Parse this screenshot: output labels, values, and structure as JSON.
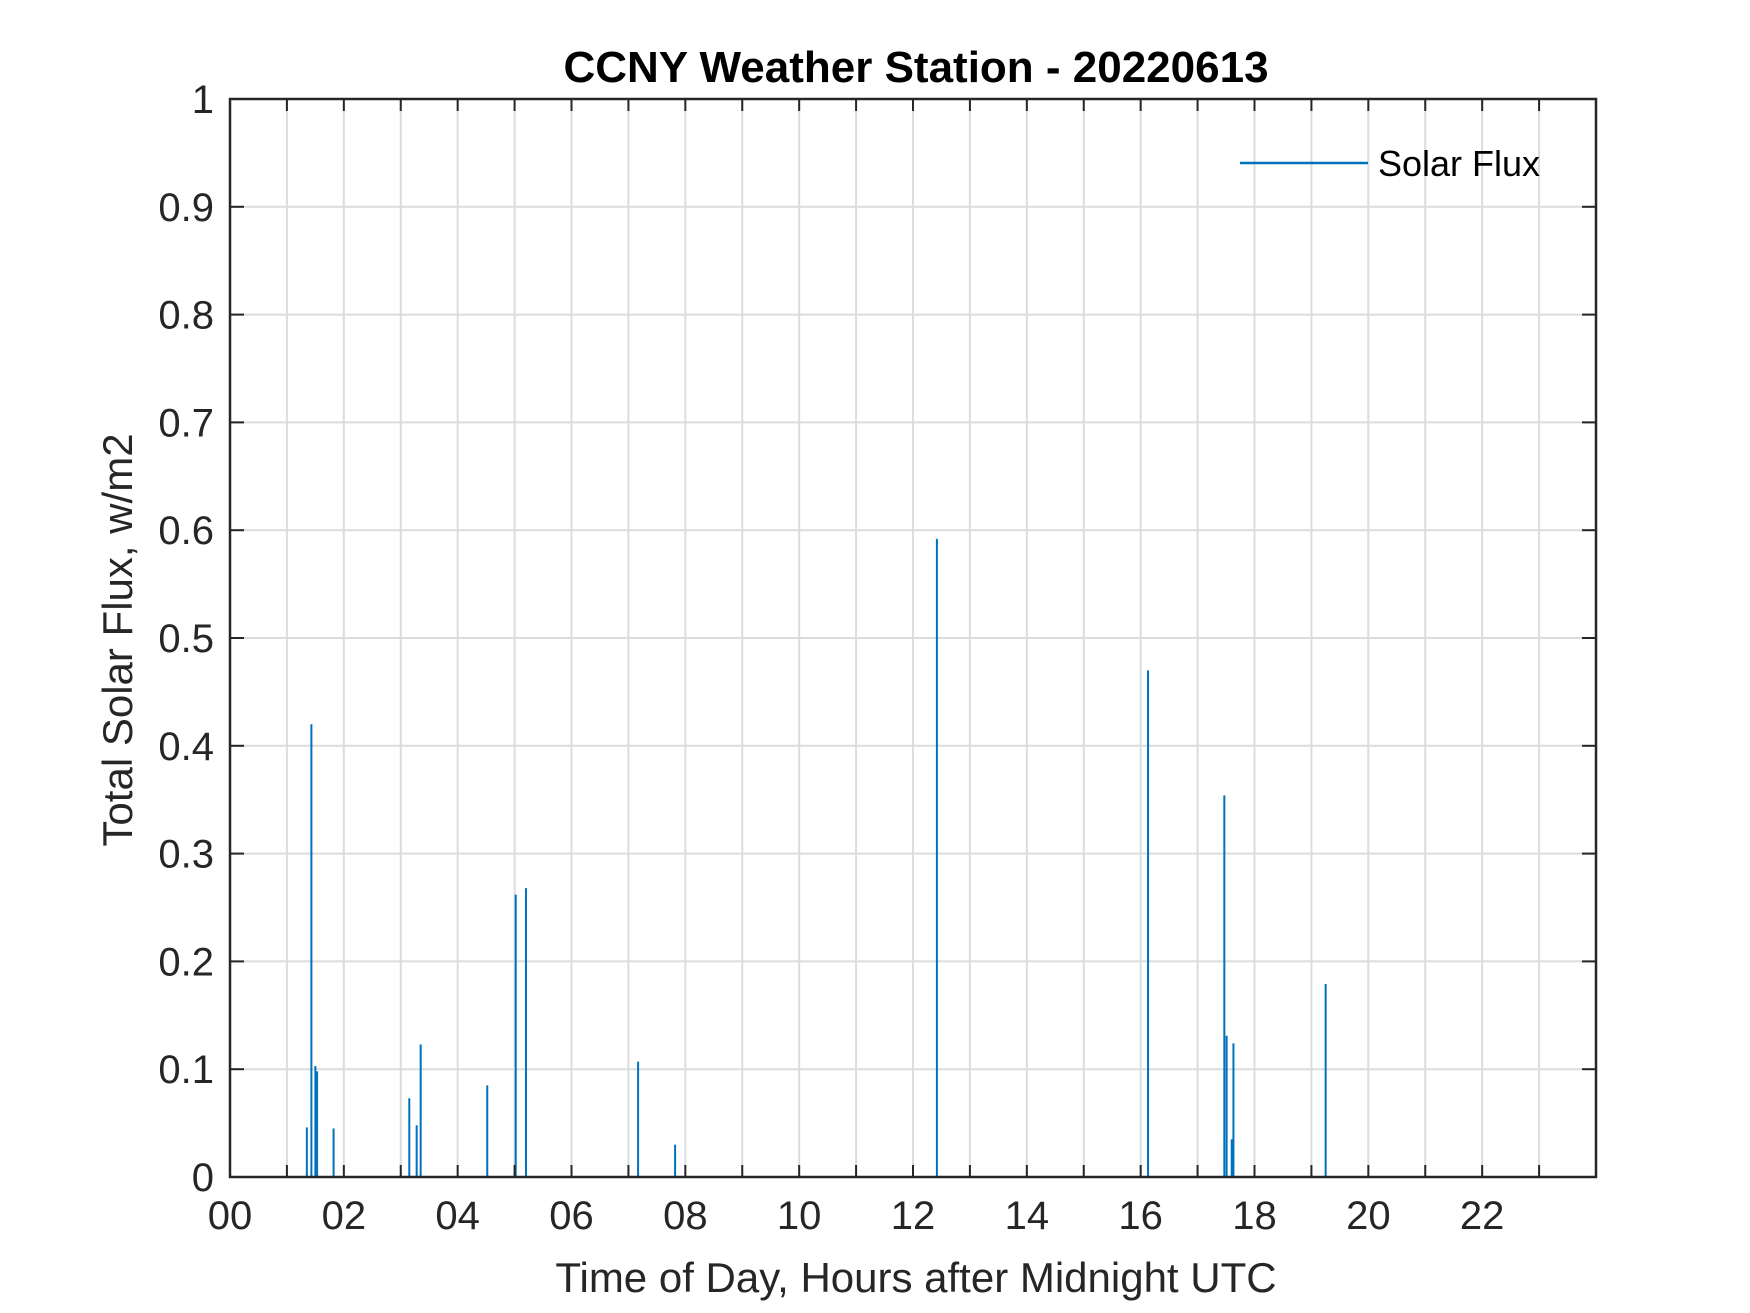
{
  "chart_data": {
    "type": "line",
    "title": "CCNY Weather Station - 20220613",
    "xlabel": "Time of Day, Hours after Midnight UTC",
    "ylabel": "Total Solar Flux, w/m2",
    "xlim": [
      0,
      24
    ],
    "ylim": [
      0,
      1
    ],
    "grid": true,
    "legend_position": "top-right",
    "x_ticks": [
      0,
      2,
      4,
      6,
      8,
      10,
      12,
      14,
      16,
      18,
      20,
      22
    ],
    "x_tick_labels": [
      "00",
      "02",
      "04",
      "06",
      "08",
      "10",
      "12",
      "14",
      "16",
      "18",
      "20",
      "22"
    ],
    "y_ticks": [
      0,
      0.1,
      0.2,
      0.3,
      0.4,
      0.5,
      0.6,
      0.7,
      0.8,
      0.9,
      1
    ],
    "y_tick_labels": [
      "0",
      "0.1",
      "0.2",
      "0.3",
      "0.4",
      "0.5",
      "0.6",
      "0.7",
      "0.8",
      "0.9",
      "1"
    ],
    "series": [
      {
        "name": "Solar Flux",
        "color": "#0072BD",
        "spikes": [
          {
            "x": 1.35,
            "y": 0.046
          },
          {
            "x": 1.43,
            "y": 0.42
          },
          {
            "x": 1.5,
            "y": 0.103
          },
          {
            "x": 1.53,
            "y": 0.098
          },
          {
            "x": 1.82,
            "y": 0.045
          },
          {
            "x": 3.15,
            "y": 0.073
          },
          {
            "x": 3.28,
            "y": 0.048
          },
          {
            "x": 3.35,
            "y": 0.123
          },
          {
            "x": 4.52,
            "y": 0.085
          },
          {
            "x": 5.02,
            "y": 0.262
          },
          {
            "x": 5.2,
            "y": 0.268
          },
          {
            "x": 7.17,
            "y": 0.107
          },
          {
            "x": 7.82,
            "y": 0.03
          },
          {
            "x": 12.42,
            "y": 0.592
          },
          {
            "x": 16.13,
            "y": 0.47
          },
          {
            "x": 17.47,
            "y": 0.354
          },
          {
            "x": 17.51,
            "y": 0.131
          },
          {
            "x": 17.6,
            "y": 0.035
          },
          {
            "x": 17.63,
            "y": 0.124
          },
          {
            "x": 19.25,
            "y": 0.179
          }
        ]
      }
    ]
  }
}
